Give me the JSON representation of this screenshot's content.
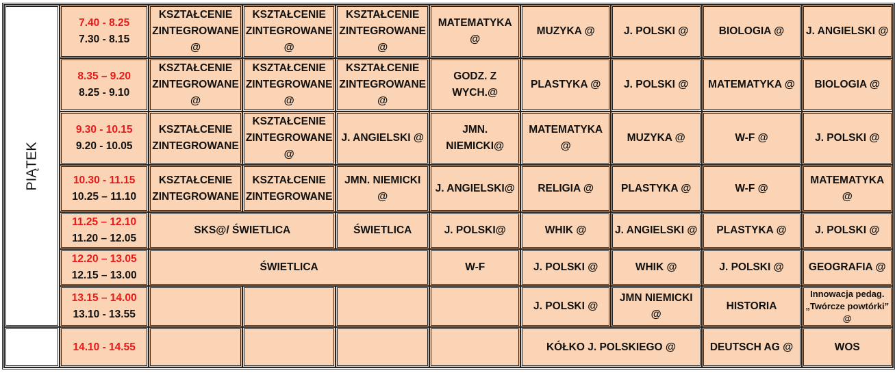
{
  "day": "PIĄTEK",
  "rows": [
    {
      "time_red": "7.40 - 8.25",
      "time_black": "7.30 - 8.15",
      "cells": [
        {
          "text": "KSZTAŁCENIE ZINTEGROWANE @"
        },
        {
          "text": "KSZTAŁCENIE ZINTEGROWANE @"
        },
        {
          "text": "KSZTAŁCENIE ZINTEGROWANE @"
        },
        {
          "text": "MATEMATYKA @"
        },
        {
          "text": "MUZYKA @"
        },
        {
          "text": "J. POLSKI @"
        },
        {
          "text": "BIOLOGIA @"
        },
        {
          "text": "J. ANGIELSKI @"
        }
      ]
    },
    {
      "time_red": "8.35 – 9.20",
      "time_black": "8.25 - 9.10",
      "cells": [
        {
          "text": "KSZTAŁCENIE ZINTEGROWANE @"
        },
        {
          "text": "KSZTAŁCENIE ZINTEGROWANE @"
        },
        {
          "text": "KSZTAŁCENIE ZINTEGROWANE @"
        },
        {
          "text": "GODZ. Z WYCH.@"
        },
        {
          "text": "PLASTYKA @"
        },
        {
          "text": "J. POLSKI @"
        },
        {
          "text": "MATEMATYKA @"
        },
        {
          "text": "BIOLOGIA @"
        }
      ]
    },
    {
      "time_red": "9.30 - 10.15",
      "time_black": "9.20 - 10.05",
      "cells": [
        {
          "text": "KSZTAŁCENIE ZINTEGROWANE"
        },
        {
          "text": "KSZTAŁCENIE ZINTEGROWANE @"
        },
        {
          "text": "J. ANGIELSKI @"
        },
        {
          "text": "JMN. NIEMICKI@"
        },
        {
          "text": "MATEMATYKA @"
        },
        {
          "text": "MUZYKA @"
        },
        {
          "text": "W-F @"
        },
        {
          "text": "J. POLSKI @"
        }
      ]
    },
    {
      "time_red": "10.30 - 11.15",
      "time_black": "10.25 – 11.10",
      "cells": [
        {
          "text": "KSZTAŁCENIE ZINTEGROWANE"
        },
        {
          "text": "KSZTAŁCENIE ZINTEGROWANE"
        },
        {
          "text": "JMN. NIEMICKI @"
        },
        {
          "text": "J. ANGIELSKI@"
        },
        {
          "text": "RELIGIA @"
        },
        {
          "text": "PLASTYKA @"
        },
        {
          "text": "W-F @"
        },
        {
          "text": "MATEMATYKA @"
        }
      ]
    },
    {
      "time_red": "11.25 – 12.10",
      "time_black": "11.20 – 12.05",
      "cells": [
        {
          "text": "SKS@/ ŚWIETLICA",
          "span": 2
        },
        {
          "text": "ŚWIETLICA"
        },
        {
          "text": "J. POLSKI@"
        },
        {
          "text": "WHIK @"
        },
        {
          "text": "J. ANGIELSKI @"
        },
        {
          "text": "PLASTYKA @"
        },
        {
          "text": "J. POLSKI @"
        }
      ]
    },
    {
      "time_red": "12.20 – 13.05",
      "time_black": "12.15 – 13.00",
      "cells": [
        {
          "text": "ŚWIETLICA",
          "span": 3
        },
        {
          "text": "W-F"
        },
        {
          "text": "J. POLSKI @"
        },
        {
          "text": "WHIK @"
        },
        {
          "text": "J. POLSKI @"
        },
        {
          "text": "GEOGRAFIA @"
        }
      ]
    },
    {
      "time_red": "13.15 – 14.00",
      "time_black": "13.10 - 13.55",
      "cells": [
        {
          "text": ""
        },
        {
          "text": ""
        },
        {
          "text": ""
        },
        {
          "text": ""
        },
        {
          "text": "J. POLSKI @"
        },
        {
          "text": "JMN NIEMICKI @"
        },
        {
          "text": "HISTORIA"
        },
        {
          "text": "Innowacja pedag. „Twórcze powtórki”  @",
          "small": true
        }
      ]
    },
    {
      "time_red": "14.10 - 14.55",
      "time_black": "",
      "cells": [
        {
          "text": ""
        },
        {
          "text": ""
        },
        {
          "text": ""
        },
        {
          "text": ""
        },
        {
          "text": "KÓŁKO J. POLSKIEGO @",
          "span": 2
        },
        {
          "text": "DEUTSCH AG  @"
        },
        {
          "text": "WOS"
        }
      ]
    }
  ]
}
